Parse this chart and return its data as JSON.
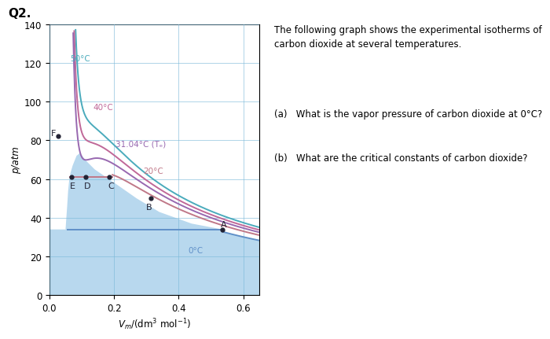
{
  "title": "Q2.",
  "xlabel": "$V_m$/(dm$^3$ mol$^{-1}$)",
  "ylabel": "p/atm",
  "xlim": [
    0,
    0.65
  ],
  "ylim": [
    0,
    140
  ],
  "yticks": [
    0,
    20,
    40,
    60,
    80,
    100,
    120,
    140
  ],
  "xticks": [
    0,
    0.2,
    0.4,
    0.6
  ],
  "background_color": "#ffffff",
  "shaded_color": "#b8d8ee",
  "grid_color": "#7ab8d8",
  "right_text_title": "The following graph shows the experimental isotherms of\ncarbon dioxide at several temperatures.",
  "right_text_a": "(a)   What is the vapor pressure of carbon dioxide at 0°C?",
  "right_text_b": "(b)   What are the critical constants of carbon dioxide?",
  "color_50": "#4aabbc",
  "color_40": "#c06898",
  "color_31": "#9868b0",
  "color_20": "#c07888",
  "color_0": "#6090c8",
  "label_50": "50°C",
  "label_40": "40°C",
  "label_31": "31.04°C (Tₑ)",
  "label_20": "20°C",
  "label_0": "0°C"
}
